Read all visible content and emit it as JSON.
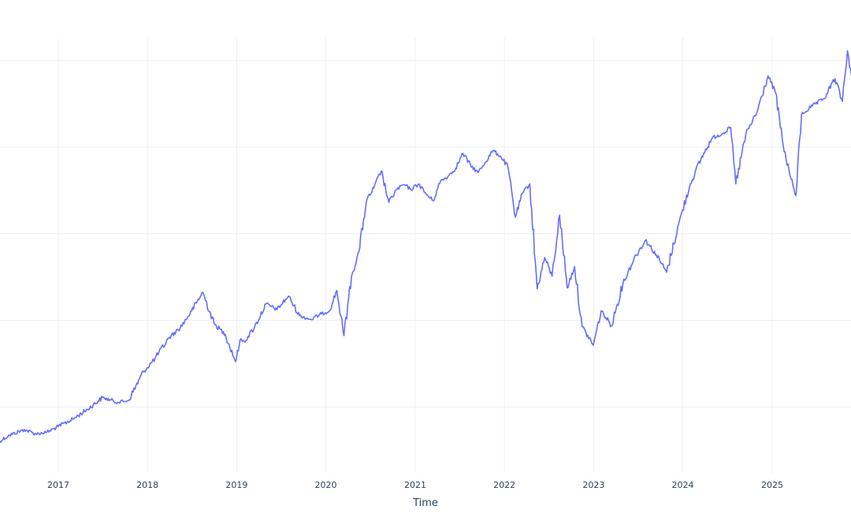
{
  "chart_data": {
    "type": "line",
    "title": "",
    "xlabel": "Time",
    "ylabel": "",
    "x_tick_labels": [
      "2017",
      "2018",
      "2019",
      "2020",
      "2021",
      "2022",
      "2023",
      "2024",
      "2025"
    ],
    "x_range": [
      "2016-04-25",
      "2025-11-30"
    ],
    "y_range": [
      0,
      100
    ],
    "y_gridlines": [
      21,
      41,
      61,
      81,
      101
    ],
    "grid": true,
    "legend": "none",
    "colors": {
      "line": "#636efa",
      "grid": "#ebf0f8",
      "text": "#2a3f5f",
      "background": "#ffffff"
    },
    "series": [
      {
        "x": [
          "2016-04-25",
          "2016-06-15",
          "2016-08-15",
          "2016-10-01",
          "2016-11-15",
          "2016-12-31",
          "2017-03-01",
          "2017-05-01",
          "2017-07-01",
          "2017-09-01",
          "2017-10-15",
          "2017-12-15",
          "2018-02-01",
          "2018-04-01",
          "2018-05-15",
          "2018-07-01",
          "2018-08-15",
          "2018-10-01",
          "2018-11-15",
          "2018-12-28",
          "2019-01-15",
          "2019-02-01",
          "2019-03-15",
          "2019-05-01",
          "2019-06-15",
          "2019-08-01",
          "2019-09-15",
          "2019-11-01",
          "2019-12-15",
          "2020-01-15",
          "2020-02-15",
          "2020-03-15",
          "2020-04-15",
          "2020-05-15",
          "2020-06-15",
          "2020-07-15",
          "2020-08-15",
          "2020-09-15",
          "2020-10-15",
          "2020-11-15",
          "2020-12-15",
          "2021-01-15",
          "2021-02-15",
          "2021-03-15",
          "2021-04-15",
          "2021-05-15",
          "2021-06-15",
          "2021-07-15",
          "2021-08-15",
          "2021-09-15",
          "2021-10-15",
          "2021-11-15",
          "2021-12-15",
          "2022-01-15",
          "2022-02-15",
          "2022-03-15",
          "2022-04-15",
          "2022-05-15",
          "2022-06-15",
          "2022-07-15",
          "2022-08-15",
          "2022-09-15",
          "2022-10-15",
          "2022-11-15",
          "2022-12-31",
          "2023-02-01",
          "2023-03-15",
          "2023-05-01",
          "2023-06-15",
          "2023-08-01",
          "2023-09-15",
          "2023-10-27",
          "2023-12-15",
          "2024-02-01",
          "2024-03-15",
          "2024-05-01",
          "2024-06-15",
          "2024-07-15",
          "2024-08-05",
          "2024-09-15",
          "2024-11-01",
          "2024-12-15",
          "2025-01-15",
          "2025-02-15",
          "2025-03-15",
          "2025-04-08",
          "2025-05-01",
          "2025-06-15",
          "2025-08-01",
          "2025-09-15",
          "2025-10-15",
          "2025-11-05",
          "2025-11-30"
        ],
        "y": [
          12.8,
          14.5,
          15.8,
          14.8,
          15.2,
          16.5,
          18.2,
          20.5,
          23.2,
          22.1,
          22.5,
          29.1,
          32.2,
          37.1,
          39.3,
          43.2,
          47.5,
          40.2,
          37.8,
          31.5,
          36.5,
          36.1,
          39.4,
          44.8,
          43.5,
          46.6,
          42.1,
          41.2,
          42.5,
          43.2,
          47.9,
          37.5,
          51.1,
          56.8,
          68.5,
          71.5,
          75.5,
          68.2,
          71.1,
          72.3,
          71.2,
          72.5,
          70.1,
          68.6,
          73.2,
          74.2,
          76.1,
          79.5,
          76.8,
          75.1,
          77.5,
          80.2,
          78.9,
          76.5,
          64.8,
          70.2,
          72.5,
          48.3,
          55.5,
          51.2,
          65.3,
          48.5,
          53.4,
          39.5,
          35.3,
          43.2,
          39.8,
          49.5,
          55.2,
          59.5,
          56.1,
          52.1,
          63.2,
          72.5,
          78.2,
          83.1,
          84.2,
          85.5,
          72.5,
          83.9,
          89.2,
          97.4,
          93.5,
          81.3,
          74.5,
          69.8,
          88.5,
          90.5,
          92.1,
          96.8,
          91.5,
          103.2,
          94.5
        ]
      }
    ]
  }
}
